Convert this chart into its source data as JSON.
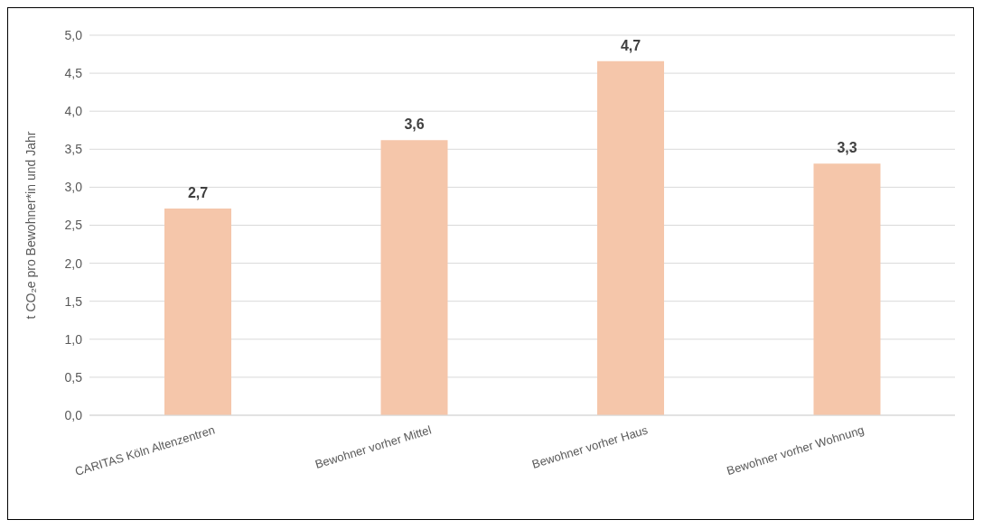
{
  "chart_data": {
    "type": "bar",
    "ylabel": "t CO₂e pro Bewohner*in und Jahr",
    "categories": [
      "CARITAS Köln Altenzentren",
      "Bewohner vorher Mittel",
      "Bewohner vorher Haus",
      "Bewohner vorher Wohnung"
    ],
    "values": [
      2.72,
      3.62,
      4.66,
      3.31
    ],
    "value_labels": [
      "2,7",
      "3,6",
      "4,7",
      "3,3"
    ],
    "color": "#f5c6aa",
    "ylim": [
      0,
      5
    ],
    "yticks": [
      {
        "value": 0,
        "label": "0,0"
      },
      {
        "value": 0.5,
        "label": "0,5"
      },
      {
        "value": 1,
        "label": "1,0"
      },
      {
        "value": 1.5,
        "label": "1,5"
      },
      {
        "value": 2,
        "label": "2,0"
      },
      {
        "value": 2.5,
        "label": "2,5"
      },
      {
        "value": 3,
        "label": "3,0"
      },
      {
        "value": 3.5,
        "label": "3,5"
      },
      {
        "value": 4,
        "label": "4,0"
      },
      {
        "value": 4.5,
        "label": "4,5"
      },
      {
        "value": 5,
        "label": "5,0"
      }
    ],
    "grid": "y",
    "legend": false
  }
}
